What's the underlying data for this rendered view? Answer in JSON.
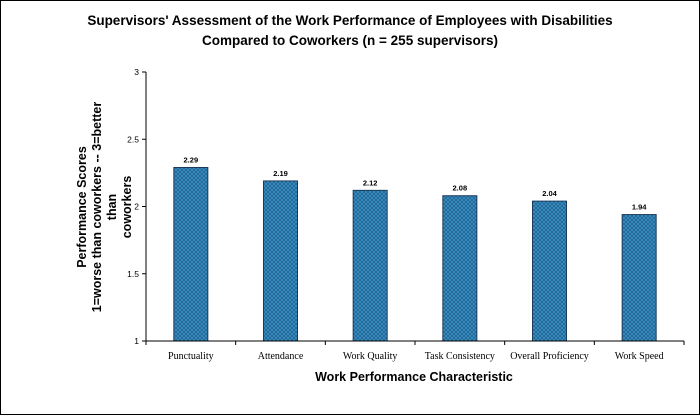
{
  "chart_data": {
    "type": "bar",
    "title_line1": "Supervisors' Assessment of the Work Performance of Employees with Disabilities",
    "title_line2": "Compared to Coworkers   (n = 255 supervisors)",
    "xlabel": "Work Performance Characteristic",
    "ylabel_line1": "Performance Scores",
    "ylabel_line2": "1=worse than coworkers  --  3=better than",
    "ylabel_line3": "coworkers",
    "categories": [
      "Punctuality",
      "Attendance",
      "Work Quality",
      "Task Consistency",
      "Overall Proficiency",
      "Work Speed"
    ],
    "values": [
      2.29,
      2.19,
      2.12,
      2.08,
      2.04,
      1.94
    ],
    "data_labels": [
      "2.29",
      "2.19",
      "2.12",
      "2.08",
      "2.04",
      "1.94"
    ],
    "ylim": [
      1,
      3
    ],
    "yticks": [
      1,
      1.5,
      2,
      2.5,
      3
    ],
    "ytick_labels": [
      "1",
      "1.5",
      "2",
      "2.5",
      "3"
    ],
    "grid": false,
    "legend": "none",
    "bar_color": "#2e7fae",
    "bar_border_color": "#1b3a5c"
  }
}
